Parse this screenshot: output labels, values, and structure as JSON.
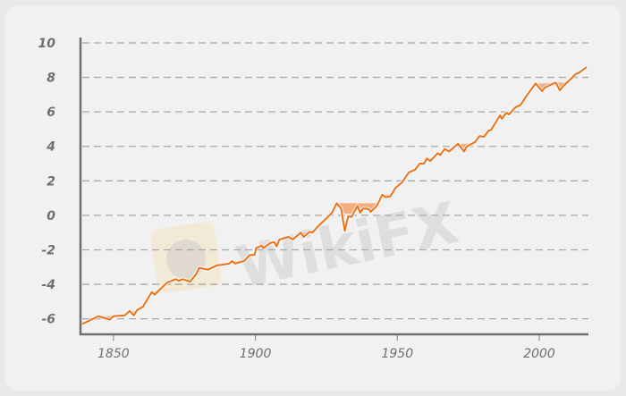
{
  "chart_data": {
    "type": "line",
    "title": "",
    "xlabel": "",
    "ylabel": "",
    "xlim": [
      1838.4,
      2017
    ],
    "ylim": [
      -6.9,
      10
    ],
    "grid": true,
    "xticks": [
      "1850",
      "1900",
      "1950",
      "2000"
    ],
    "yticks": [
      "10",
      "8",
      "6",
      "4",
      "2",
      "0",
      "-2",
      "-4",
      "-6"
    ],
    "series": [
      {
        "name": "series",
        "color": "#e8731a",
        "drawdown_fill_color": "#f5a06e",
        "x": [
          1839,
          1844.7,
          1848.7,
          1850,
          1854,
          1855.7,
          1857.2,
          1858.3,
          1860.4,
          1863.5,
          1864.5,
          1868.9,
          1872,
          1873,
          1874.5,
          1877,
          1879.2,
          1880.2,
          1883.3,
          1886.5,
          1890.8,
          1891.8,
          1892.8,
          1896,
          1898,
          1899.7,
          1900.3,
          1902.2,
          1902.8,
          1905.3,
          1906.6,
          1907.5,
          1908.5,
          1911.6,
          1913.2,
          1916,
          1917,
          1919.2,
          1920.1,
          1922.3,
          1925.5,
          1927,
          1928.6,
          1930.2,
          1931.5,
          1932.7,
          1933.8,
          1936,
          1936.9,
          1938,
          1940,
          1940.6,
          1942.8,
          1944.7,
          1945.9,
          1947.5,
          1949.4,
          1951.6,
          1954.1,
          1956.3,
          1957.9,
          1959.4,
          1960.4,
          1961.6,
          1964.2,
          1965.1,
          1966.7,
          1968.2,
          1971.4,
          1973.5,
          1974.5,
          1977.4,
          1978.9,
          1980.5,
          1982.1,
          1983,
          1986.2,
          1986.8,
          1988.4,
          1989.3,
          1991.5,
          1993.4,
          1995.6,
          1998.7,
          2001,
          2001.9,
          2005.7,
          2006,
          2007.2,
          2008.8,
          2010.7,
          2012.9,
          2013.8,
          2016.7
        ],
        "y": [
          -6.3,
          -5.85,
          -6.05,
          -5.85,
          -5.8,
          -5.55,
          -5.8,
          -5.5,
          -5.3,
          -4.45,
          -4.6,
          -3.9,
          -3.7,
          -3.8,
          -3.7,
          -3.85,
          -3.4,
          -3.05,
          -3.15,
          -2.9,
          -2.8,
          -2.65,
          -2.8,
          -2.65,
          -2.3,
          -2.3,
          -1.9,
          -1.75,
          -1.9,
          -1.6,
          -1.55,
          -1.8,
          -1.4,
          -1.25,
          -1.4,
          -1.0,
          -1.25,
          -0.95,
          -1.0,
          -0.6,
          -0.1,
          0.15,
          0.7,
          0.4,
          -0.9,
          -0.05,
          -0.1,
          0.55,
          0.15,
          0.4,
          0.35,
          0.2,
          0.55,
          1.2,
          1.05,
          1.1,
          1.6,
          1.9,
          2.5,
          2.65,
          3.0,
          3.0,
          3.3,
          3.15,
          3.6,
          3.5,
          3.85,
          3.7,
          4.15,
          3.7,
          4.0,
          4.25,
          4.6,
          4.55,
          4.9,
          4.95,
          5.8,
          5.6,
          5.95,
          5.85,
          6.25,
          6.4,
          6.95,
          7.65,
          7.2,
          7.4,
          7.7,
          7.65,
          7.25,
          7.55,
          7.85,
          8.2,
          8.25,
          8.6
        ]
      }
    ]
  },
  "watermark": "WikiFX"
}
